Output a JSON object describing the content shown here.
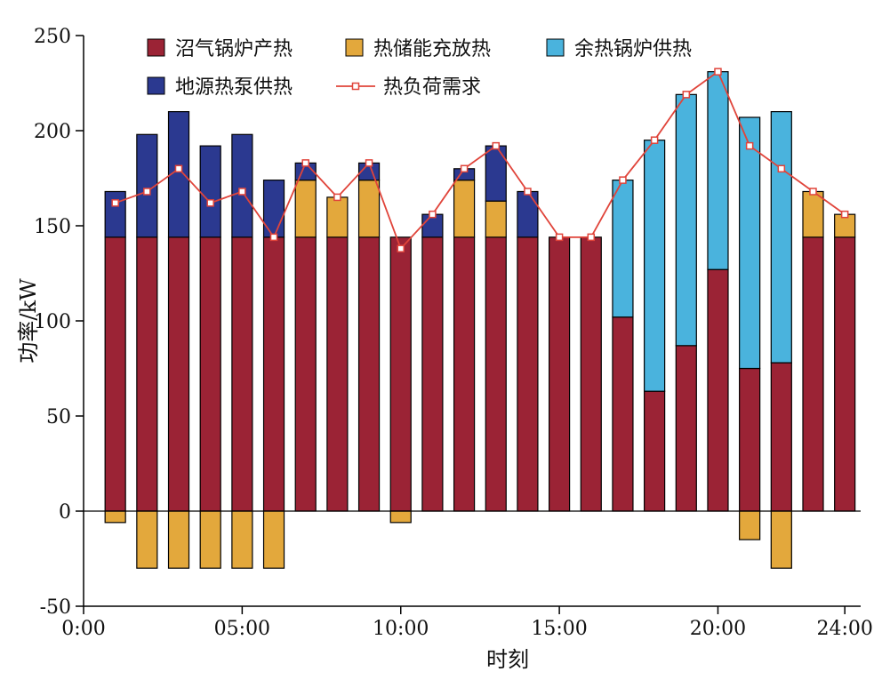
{
  "chart_data": {
    "type": "bar",
    "xlabel": "时刻",
    "ylabel": "功率/kW",
    "ylim": [
      -50,
      250
    ],
    "yticks": [
      -50,
      0,
      50,
      100,
      150,
      200,
      250
    ],
    "xlim": [
      0,
      24.5
    ],
    "xticks": [
      0,
      5,
      10,
      15,
      20,
      24
    ],
    "xtick_labels": [
      "0:00",
      "05:00",
      "10:00",
      "15:00",
      "20:00",
      "24:00"
    ],
    "x": [
      1,
      2,
      3,
      4,
      5,
      6,
      7,
      8,
      9,
      10,
      11,
      12,
      13,
      14,
      15,
      16,
      17,
      18,
      19,
      20,
      21,
      22,
      23,
      24
    ],
    "series": [
      {
        "name": "沼气锅炉产热",
        "color": "#9b2335",
        "kind": "bar",
        "values": [
          144,
          144,
          144,
          144,
          144,
          144,
          144,
          144,
          144,
          144,
          144,
          144,
          144,
          144,
          144,
          144,
          102,
          63,
          87,
          127,
          75,
          78,
          144,
          144
        ]
      },
      {
        "name": "热储能充放热",
        "color": "#e3a83c",
        "kind": "bar",
        "values": [
          -6,
          -30,
          -30,
          -30,
          -30,
          -30,
          30,
          21,
          30,
          -6,
          0,
          30,
          19,
          0,
          0,
          0,
          0,
          0,
          0,
          0,
          -15,
          -30,
          24,
          12
        ]
      },
      {
        "name": "余热锅炉供热",
        "color": "#4ab3dd",
        "kind": "bar",
        "values": [
          0,
          0,
          0,
          0,
          0,
          0,
          0,
          0,
          0,
          0,
          0,
          0,
          0,
          0,
          0,
          0,
          72,
          132,
          132,
          104,
          132,
          132,
          0,
          0
        ]
      },
      {
        "name": "地源热泵供热",
        "color": "#2b3990",
        "kind": "bar",
        "values": [
          24,
          54,
          66,
          48,
          54,
          30,
          9,
          0,
          9,
          0,
          12,
          6,
          29,
          24,
          0,
          0,
          0,
          0,
          0,
          0,
          0,
          0,
          0,
          0
        ]
      },
      {
        "name": "热负荷需求",
        "color": "#e0443a",
        "kind": "line",
        "values": [
          162,
          168,
          180,
          162,
          168,
          144,
          183,
          165,
          183,
          138,
          156,
          180,
          192,
          168,
          144,
          144,
          174,
          195,
          219,
          231,
          192,
          180,
          168,
          156
        ]
      }
    ],
    "legend_position": "top",
    "grid": false
  }
}
